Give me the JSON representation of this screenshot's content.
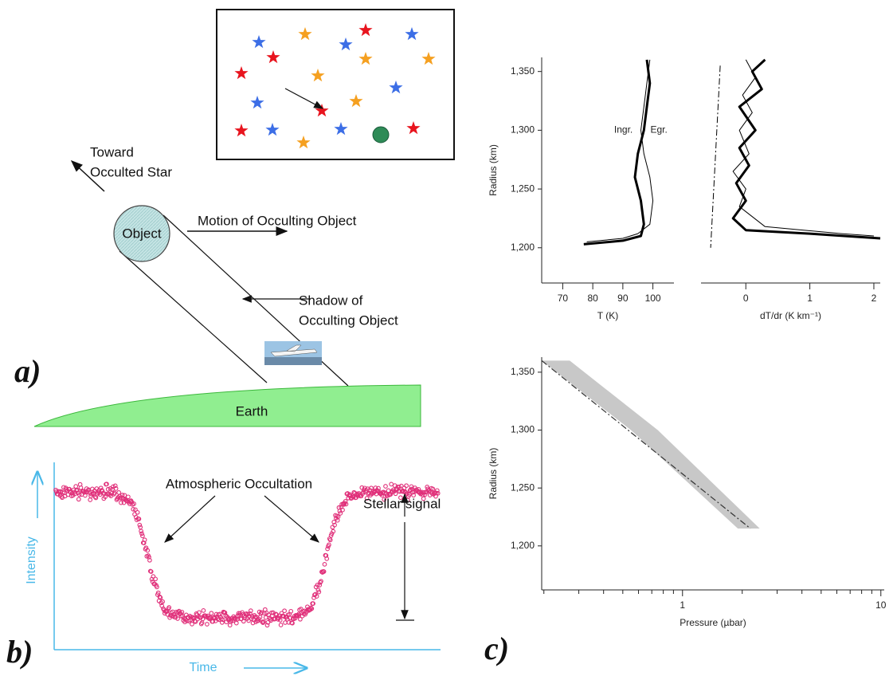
{
  "diagram": {
    "panel_a": "a)",
    "toward_1": "Toward",
    "toward_2": "Occulted Star",
    "object": "Object",
    "motion": "Motion of Occulting Object",
    "shadow_1": "Shadow of",
    "shadow_2": "Occulting Object",
    "earth": "Earth"
  },
  "light_curve": {
    "panel": "b)",
    "annotation": "Atmospheric Occultation",
    "signal": "Stellar signal",
    "y_label": "Intensity",
    "x_label": "Time"
  },
  "panel_c": "c)",
  "chart_data": [
    {
      "type": "line",
      "x_label": "T (K)",
      "y_label": "Radius (km)",
      "xlim": [
        63,
        107
      ],
      "xticks": [
        70,
        80,
        90,
        100
      ],
      "ylim": [
        1170,
        1362
      ],
      "yticks": [
        {
          "value": 1200,
          "label": "1,200"
        },
        {
          "value": 1250,
          "label": "1,250"
        },
        {
          "value": 1300,
          "label": "1,300"
        },
        {
          "value": 1350,
          "label": "1,350"
        }
      ],
      "series": [
        {
          "name": "Ingr.",
          "color": "#000000",
          "width": 3,
          "x": [
            77,
            90,
            96,
            97,
            96,
            94,
            95,
            97,
            98,
            99,
            98
          ],
          "values": [
            1203,
            1206,
            1210,
            1220,
            1240,
            1260,
            1280,
            1300,
            1320,
            1340,
            1360
          ]
        },
        {
          "name": "Egr.",
          "color": "#000000",
          "width": 1,
          "x": [
            78,
            90,
            95,
            99,
            100,
            99,
            97,
            96,
            97,
            98,
            99
          ],
          "values": [
            1205,
            1208,
            1212,
            1220,
            1240,
            1260,
            1280,
            1300,
            1320,
            1340,
            1360
          ]
        }
      ]
    },
    {
      "type": "line",
      "x_label": "dT/dr (K km⁻¹)",
      "xlim": [
        -0.7,
        2.1
      ],
      "xticks": [
        0,
        1,
        2
      ],
      "ylim": [
        1170,
        1362
      ],
      "series": [
        {
          "color": "#000000",
          "width": 3,
          "x": [
            0.3,
            0.1,
            0.25,
            -0.1,
            0.15,
            -0.1,
            0.05,
            -0.15,
            0.0,
            -0.2,
            0.0,
            1.0,
            2.1
          ],
          "values": [
            1360,
            1350,
            1335,
            1320,
            1300,
            1285,
            1270,
            1255,
            1240,
            1225,
            1215,
            1212,
            1208
          ]
        },
        {
          "color": "#000000",
          "width": 1,
          "x": [
            0.0,
            0.15,
            -0.05,
            0.1,
            -0.1,
            0.05,
            -0.2,
            0.0,
            -0.1,
            0.3,
            1.5,
            2.0
          ],
          "values": [
            1360,
            1345,
            1330,
            1315,
            1300,
            1280,
            1265,
            1250,
            1235,
            1218,
            1212,
            1210
          ]
        },
        {
          "color": "#000000",
          "width": 1,
          "dash": "8 3 2 3",
          "x": [
            -0.4,
            -0.55
          ],
          "values": [
            1355,
            1200
          ]
        }
      ]
    },
    {
      "type": "band",
      "x_label": "Pressure (µbar)",
      "y_label": "Radius (km)",
      "log_x": true,
      "xlim": [
        0.195,
        10.4
      ],
      "xticks": [
        1,
        10
      ],
      "ylim": [
        1162,
        1363
      ],
      "yticks": [
        {
          "value": 1200,
          "label": "1,200"
        },
        {
          "value": 1250,
          "label": "1,250"
        },
        {
          "value": 1300,
          "label": "1,300"
        },
        {
          "value": 1350,
          "label": "1,350"
        }
      ],
      "band": {
        "color": "#c8c8c8",
        "values": [
          1360,
          1300,
          1215
        ],
        "low": [
          0.195,
          0.55,
          1.9
        ],
        "high": [
          0.27,
          0.75,
          2.45
        ]
      },
      "series": [
        {
          "color": "#333333",
          "width": 1.2,
          "dash": "8 3 2 3",
          "x": [
            0.195,
            2.2
          ],
          "values": [
            1360,
            1215
          ]
        }
      ]
    }
  ]
}
